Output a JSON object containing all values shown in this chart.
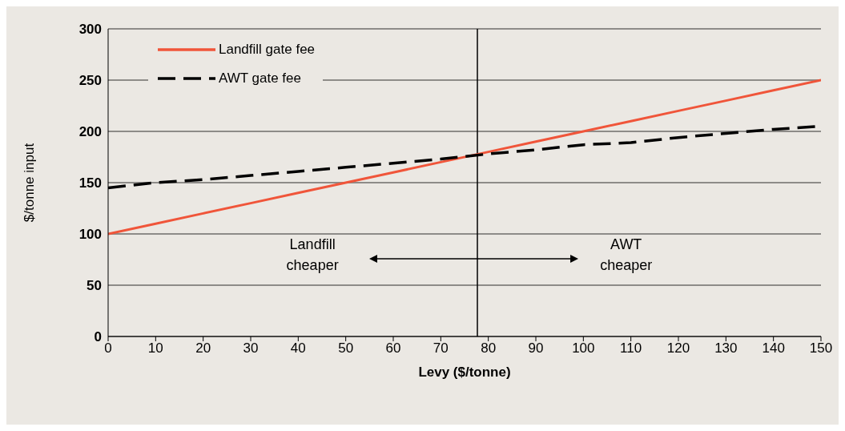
{
  "chart_data": {
    "type": "line",
    "xlabel": "Levy ($/tonne)",
    "ylabel": "$/tonne input",
    "x": [
      0,
      10,
      20,
      30,
      40,
      50,
      60,
      70,
      80,
      90,
      100,
      110,
      120,
      130,
      140,
      150
    ],
    "series": [
      {
        "name": "Landfill gate fee",
        "color": "#f0553a",
        "line_style": "solid",
        "values": [
          100,
          110,
          120,
          130,
          140,
          150,
          160,
          170,
          180,
          190,
          200,
          210,
          220,
          230,
          240,
          250
        ]
      },
      {
        "name": "AWT gate fee",
        "color": "#000000",
        "line_style": "dashed",
        "values": [
          145,
          150,
          153,
          157,
          161,
          165,
          169,
          173,
          178,
          182,
          187,
          189,
          194,
          198,
          202,
          205
        ]
      }
    ],
    "xlim": [
      0,
      150
    ],
    "xticks": [
      0,
      10,
      20,
      30,
      40,
      50,
      60,
      70,
      80,
      90,
      100,
      110,
      120,
      130,
      140,
      150
    ],
    "ylim": [
      0,
      300
    ],
    "yticks": [
      0,
      50,
      100,
      150,
      200,
      250,
      300
    ],
    "grid": "y",
    "legend": "top left",
    "marker": "none",
    "ref_lines": [
      {
        "axis": "x",
        "value": 77.7,
        "color": "#000000"
      }
    ],
    "annotations": [
      "Landfill\ncheaper",
      "AWT\ncheaper"
    ]
  }
}
